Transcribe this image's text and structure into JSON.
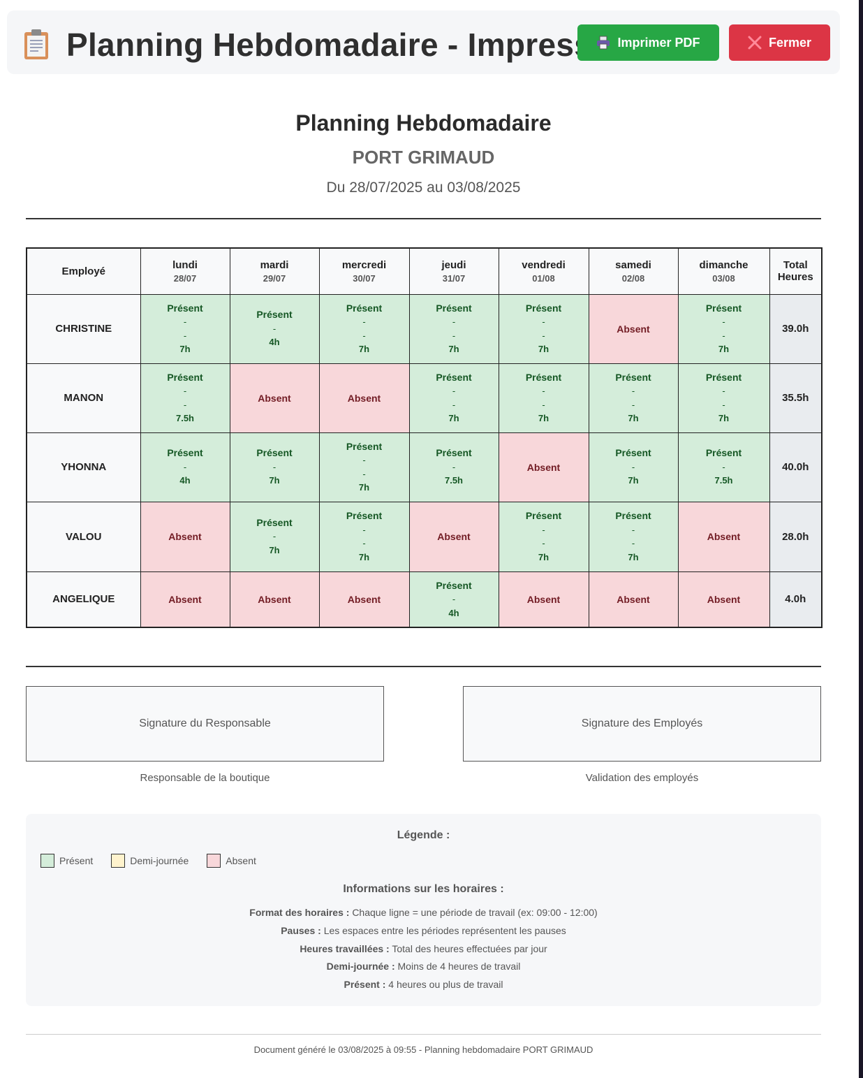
{
  "header": {
    "title": "Planning Hebdomadaire - Impression",
    "print_label": "Imprimer PDF",
    "close_label": "Fermer"
  },
  "document": {
    "title": "Planning Hebdomadaire",
    "store": "PORT GRIMAUD",
    "date_range": "Du 28/07/2025 au 03/08/2025"
  },
  "table": {
    "employee_header": "Employé",
    "total_header_line1": "Total",
    "total_header_line2": "Heures",
    "days": [
      {
        "name": "lundi",
        "date": "28/07"
      },
      {
        "name": "mardi",
        "date": "29/07"
      },
      {
        "name": "mercredi",
        "date": "30/07"
      },
      {
        "name": "jeudi",
        "date": "31/07"
      },
      {
        "name": "vendredi",
        "date": "01/08"
      },
      {
        "name": "samedi",
        "date": "02/08"
      },
      {
        "name": "dimanche",
        "date": "03/08"
      }
    ],
    "rows": [
      {
        "employee": "CHRISTINE",
        "total": "39.0h",
        "cells": [
          {
            "status": "Présent",
            "lines": [
              "-",
              "-"
            ],
            "hours": "7h"
          },
          {
            "status": "Présent",
            "lines": [
              "-"
            ],
            "hours": "4h"
          },
          {
            "status": "Présent",
            "lines": [
              "-",
              "-"
            ],
            "hours": "7h"
          },
          {
            "status": "Présent",
            "lines": [
              "-",
              "-"
            ],
            "hours": "7h"
          },
          {
            "status": "Présent",
            "lines": [
              "-",
              "-"
            ],
            "hours": "7h"
          },
          {
            "status": "Absent"
          },
          {
            "status": "Présent",
            "lines": [
              "-",
              "-"
            ],
            "hours": "7h"
          }
        ]
      },
      {
        "employee": "MANON",
        "total": "35.5h",
        "cells": [
          {
            "status": "Présent",
            "lines": [
              "-",
              "-"
            ],
            "hours": "7.5h"
          },
          {
            "status": "Absent"
          },
          {
            "status": "Absent"
          },
          {
            "status": "Présent",
            "lines": [
              "-",
              "-"
            ],
            "hours": "7h"
          },
          {
            "status": "Présent",
            "lines": [
              "-",
              "-"
            ],
            "hours": "7h"
          },
          {
            "status": "Présent",
            "lines": [
              "-",
              "-"
            ],
            "hours": "7h"
          },
          {
            "status": "Présent",
            "lines": [
              "-",
              "-"
            ],
            "hours": "7h"
          }
        ]
      },
      {
        "employee": "YHONNA",
        "total": "40.0h",
        "cells": [
          {
            "status": "Présent",
            "lines": [
              "-"
            ],
            "hours": "4h"
          },
          {
            "status": "Présent",
            "lines": [
              "-"
            ],
            "hours": "7h"
          },
          {
            "status": "Présent",
            "lines": [
              "-",
              "-"
            ],
            "hours": "7h"
          },
          {
            "status": "Présent",
            "lines": [
              "-"
            ],
            "hours": "7.5h"
          },
          {
            "status": "Absent"
          },
          {
            "status": "Présent",
            "lines": [
              "-"
            ],
            "hours": "7h"
          },
          {
            "status": "Présent",
            "lines": [
              "-"
            ],
            "hours": "7.5h"
          }
        ]
      },
      {
        "employee": "VALOU",
        "total": "28.0h",
        "cells": [
          {
            "status": "Absent"
          },
          {
            "status": "Présent",
            "lines": [
              "-"
            ],
            "hours": "7h"
          },
          {
            "status": "Présent",
            "lines": [
              "-",
              "-"
            ],
            "hours": "7h"
          },
          {
            "status": "Absent"
          },
          {
            "status": "Présent",
            "lines": [
              "-",
              "-"
            ],
            "hours": "7h"
          },
          {
            "status": "Présent",
            "lines": [
              "-",
              "-"
            ],
            "hours": "7h"
          },
          {
            "status": "Absent"
          }
        ]
      },
      {
        "employee": "ANGELIQUE",
        "total": "4.0h",
        "cells": [
          {
            "status": "Absent"
          },
          {
            "status": "Absent"
          },
          {
            "status": "Absent"
          },
          {
            "status": "Présent",
            "lines": [
              "-"
            ],
            "hours": "4h"
          },
          {
            "status": "Absent"
          },
          {
            "status": "Absent"
          },
          {
            "status": "Absent"
          }
        ]
      }
    ]
  },
  "signatures": {
    "manager_box": "Signature du Responsable",
    "employees_box": "Signature des Employés",
    "manager_caption": "Responsable de la boutique",
    "employees_caption": "Validation des employés"
  },
  "legend": {
    "title": "Légende :",
    "items": [
      {
        "label": "Présent",
        "color": "#d4edda"
      },
      {
        "label": "Demi-journée",
        "color": "#fff3cd"
      },
      {
        "label": "Absent",
        "color": "#f8d7da"
      }
    ],
    "info_title": "Informations sur les horaires :",
    "info": [
      {
        "key": "Format des horaires :",
        "text": "Chaque ligne = une période de travail (ex: 09:00 - 12:00)"
      },
      {
        "key": "Pauses :",
        "text": "Les espaces entre les périodes représentent les pauses"
      },
      {
        "key": "Heures travaillées :",
        "text": "Total des heures effectuées par jour"
      },
      {
        "key": "Demi-journée :",
        "text": "Moins de 4 heures de travail"
      },
      {
        "key": "Présent :",
        "text": "4 heures ou plus de travail"
      }
    ]
  },
  "footer": "Document généré le 03/08/2025 à 09:55 - Planning hebdomadaire PORT GRIMAUD",
  "colors": {
    "print_button": "#27a745",
    "close_button": "#dc3545",
    "present_bg": "#d4edda",
    "absent_bg": "#f8d7da",
    "half_day_bg": "#fff3cd"
  },
  "icons": {
    "title": "clipboard-icon",
    "print": "printer-icon",
    "close": "close-x-icon"
  }
}
